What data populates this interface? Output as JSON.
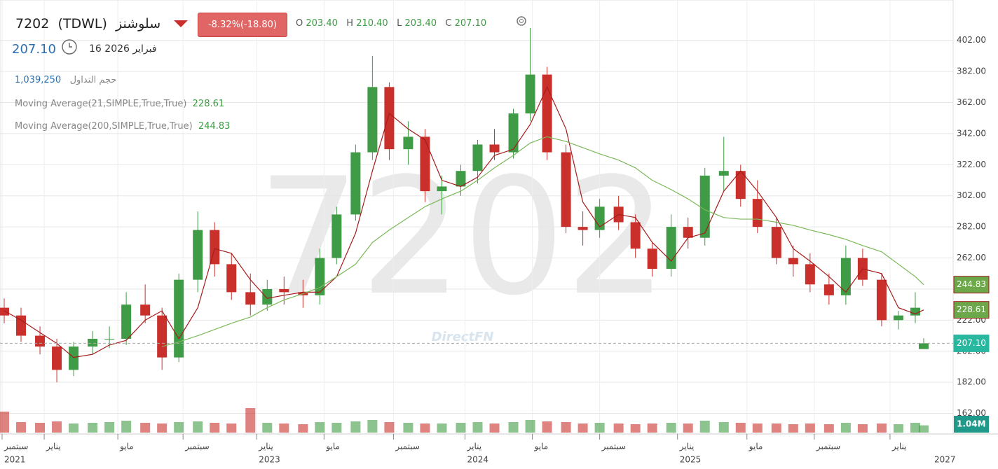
{
  "header": {
    "symbol": "7202",
    "exchange": "(TDWL)",
    "name": "سلوشنز",
    "change": "-8.32%(-18.80)",
    "open_label": "O",
    "open": "203.40",
    "high_label": "H",
    "high": "210.40",
    "low_label": "L",
    "low": "203.40",
    "close_label": "C",
    "close": "207.10",
    "last": "207.10",
    "date": "فبراير 2026 16",
    "volume_label": "حجم التداول",
    "volume": "1,039,250",
    "ma21_label": "Moving Average(21,SIMPLE,True,True)",
    "ma21": "228.61",
    "ma200_label": "Moving Average(200,SIMPLE,True,True)",
    "ma200": "244.83",
    "watermark": "7202",
    "brand": "DirectFN"
  },
  "chart_data": {
    "type": "candlestick",
    "up_color": "#3f9b45",
    "down_color": "#c9302c",
    "x": [
      2021.76,
      2021.84,
      2021.93,
      2022.01,
      2022.09,
      2022.18,
      2022.26,
      2022.34,
      2022.43,
      2022.51,
      2022.59,
      2022.68,
      2022.76,
      2022.84,
      2022.93,
      2023.01,
      2023.09,
      2023.18,
      2023.26,
      2023.34,
      2023.43,
      2023.51,
      2023.59,
      2023.68,
      2023.76,
      2023.84,
      2023.93,
      2024.01,
      2024.09,
      2024.18,
      2024.26,
      2024.34,
      2024.43,
      2024.51,
      2024.59,
      2024.68,
      2024.76,
      2024.84,
      2024.93,
      2025.01,
      2025.09,
      2025.18,
      2025.26,
      2025.34,
      2025.43,
      2025.51,
      2025.59,
      2025.68,
      2025.76,
      2025.84,
      2025.93,
      2026.01,
      2026.09,
      2026.13
    ],
    "open": [
      230,
      225,
      212,
      205,
      190,
      205,
      210,
      210,
      232,
      225,
      198,
      248,
      280,
      258,
      240,
      232,
      242,
      240,
      238,
      262,
      290,
      330,
      372,
      332,
      340,
      305,
      308,
      318,
      335,
      330,
      355,
      380,
      330,
      282,
      280,
      295,
      285,
      268,
      255,
      282,
      275,
      315,
      318,
      300,
      282,
      262,
      258,
      245,
      238,
      262,
      248,
      222,
      225,
      203.4
    ],
    "high": [
      236,
      230,
      218,
      210,
      208,
      215,
      218,
      240,
      245,
      230,
      252,
      292,
      285,
      265,
      252,
      248,
      250,
      248,
      268,
      295,
      335,
      392,
      375,
      350,
      345,
      315,
      322,
      338,
      345,
      358,
      410,
      385,
      335,
      292,
      300,
      302,
      290,
      272,
      290,
      288,
      320,
      340,
      322,
      312,
      288,
      270,
      265,
      252,
      270,
      268,
      252,
      228,
      240,
      210.4
    ],
    "low": [
      220,
      208,
      200,
      182,
      186,
      200,
      204,
      206,
      220,
      190,
      195,
      240,
      250,
      235,
      225,
      228,
      232,
      230,
      232,
      258,
      286,
      325,
      325,
      322,
      298,
      290,
      302,
      310,
      325,
      326,
      350,
      325,
      278,
      270,
      275,
      280,
      262,
      250,
      250,
      268,
      270,
      305,
      295,
      278,
      258,
      250,
      240,
      232,
      232,
      244,
      218,
      216,
      220,
      203.4
    ],
    "close": [
      225,
      212,
      205,
      190,
      205,
      210,
      210,
      232,
      225,
      198,
      248,
      280,
      258,
      240,
      232,
      242,
      240,
      238,
      262,
      290,
      330,
      372,
      332,
      340,
      305,
      308,
      318,
      335,
      330,
      355,
      380,
      330,
      282,
      280,
      295,
      285,
      268,
      255,
      282,
      275,
      315,
      318,
      300,
      282,
      262,
      258,
      245,
      238,
      262,
      248,
      222,
      225,
      230,
      207.1
    ],
    "volume": [
      3000000,
      1500000,
      1400000,
      1600000,
      1300000,
      1400000,
      1500000,
      1700000,
      1400000,
      1300000,
      1500000,
      1600000,
      1400000,
      1300000,
      3500000,
      1400000,
      1300000,
      1200000,
      1500000,
      1400000,
      1600000,
      1800000,
      1500000,
      1400000,
      1300000,
      1300000,
      1400000,
      1500000,
      1300000,
      1500000,
      1800000,
      1600000,
      1500000,
      1300000,
      1400000,
      1300000,
      1200000,
      1300000,
      1400000,
      1300000,
      1700000,
      1500000,
      1400000,
      1300000,
      1300000,
      1200000,
      1300000,
      1200000,
      1400000,
      1200000,
      1300000,
      1200000,
      1400000,
      1039250
    ],
    "volume_value_labels": [
      null,
      null,
      null,
      null,
      null,
      null,
      null,
      null,
      null,
      null,
      null,
      null,
      null,
      null,
      null,
      null,
      null,
      null,
      null,
      null,
      null,
      null,
      null,
      null,
      null,
      null,
      null,
      null,
      null,
      null,
      null,
      null,
      null,
      null,
      null,
      null,
      null,
      null,
      null,
      null,
      null,
      null,
      null,
      null,
      null,
      null,
      null,
      null,
      null,
      null,
      null,
      null,
      null,
      "1.04M"
    ],
    "vlim": [
      0,
      4000000
    ],
    "series": [
      {
        "name": "Moving Average(21,SIMPLE,True,True)",
        "color": "#a51c1c",
        "values": [
          228,
          222,
          214,
          207,
          198,
          200,
          206,
          209,
          222,
          228,
          210,
          230,
          268,
          265,
          248,
          236,
          238,
          240,
          240,
          250,
          278,
          318,
          355,
          345,
          338,
          312,
          308,
          314,
          328,
          332,
          348,
          372,
          345,
          298,
          282,
          290,
          288,
          272,
          260,
          275,
          278,
          305,
          318,
          305,
          288,
          268,
          260,
          250,
          240,
          255,
          252,
          230,
          226,
          228.61
        ]
      },
      {
        "name": "Moving Average(200,SIMPLE,True,True)",
        "color": "#7bb85a",
        "values": [
          null,
          null,
          null,
          null,
          null,
          null,
          null,
          null,
          null,
          205,
          208,
          212,
          216,
          220,
          224,
          230,
          235,
          239,
          243,
          250,
          258,
          272,
          280,
          288,
          295,
          300,
          305,
          312,
          320,
          328,
          336,
          340,
          337,
          333,
          329,
          325,
          320,
          312,
          306,
          300,
          293,
          288,
          287,
          287,
          285,
          283,
          280,
          277,
          274,
          270,
          266,
          258,
          250,
          244.83
        ]
      }
    ],
    "ylim": [
      160,
      428
    ],
    "yticks": [
      {
        "value": 162,
        "label": "162.00"
      },
      {
        "value": 182,
        "label": "182.00"
      },
      {
        "value": 202,
        "label": "202.00"
      },
      {
        "value": 222,
        "label": "222.00"
      },
      {
        "value": 242,
        "label": "242.00"
      },
      {
        "value": 262,
        "label": "262.00"
      },
      {
        "value": 282,
        "label": "282.00"
      },
      {
        "value": 302,
        "label": "302.00"
      },
      {
        "value": 322,
        "label": "322.00"
      },
      {
        "value": 342,
        "label": "342.00"
      },
      {
        "value": 362,
        "label": "362.00"
      },
      {
        "value": 382,
        "label": "382.00"
      },
      {
        "value": 402,
        "label": "402.00"
      }
    ],
    "xlim": [
      2021.74,
      2026.27
    ],
    "xticks": [
      {
        "value": 2021.75,
        "label": "سبتمبر"
      },
      {
        "value": 2021.95,
        "label": "يناير"
      },
      {
        "value": 2022.3,
        "label": "مايو"
      },
      {
        "value": 2022.61,
        "label": "سبتمبر"
      },
      {
        "value": 2022.96,
        "label": "يناير"
      },
      {
        "value": 2023.28,
        "label": "مايو"
      },
      {
        "value": 2023.61,
        "label": "سبتمبر"
      },
      {
        "value": 2023.95,
        "label": "يناير"
      },
      {
        "value": 2024.27,
        "label": "مايو"
      },
      {
        "value": 2024.59,
        "label": "سبتمبر"
      },
      {
        "value": 2024.96,
        "label": "يناير"
      },
      {
        "value": 2025.29,
        "label": "مايو"
      },
      {
        "value": 2025.61,
        "label": "سبتمبر"
      },
      {
        "value": 2025.97,
        "label": "يناير"
      }
    ],
    "xyears": [
      {
        "value": 2021.75,
        "label": "2021"
      },
      {
        "value": 2022.96,
        "label": "2023"
      },
      {
        "value": 2023.95,
        "label": "2024"
      },
      {
        "value": 2024.96,
        "label": "2025"
      },
      {
        "value": 2026.17,
        "label": "2027"
      }
    ],
    "grid": true
  }
}
